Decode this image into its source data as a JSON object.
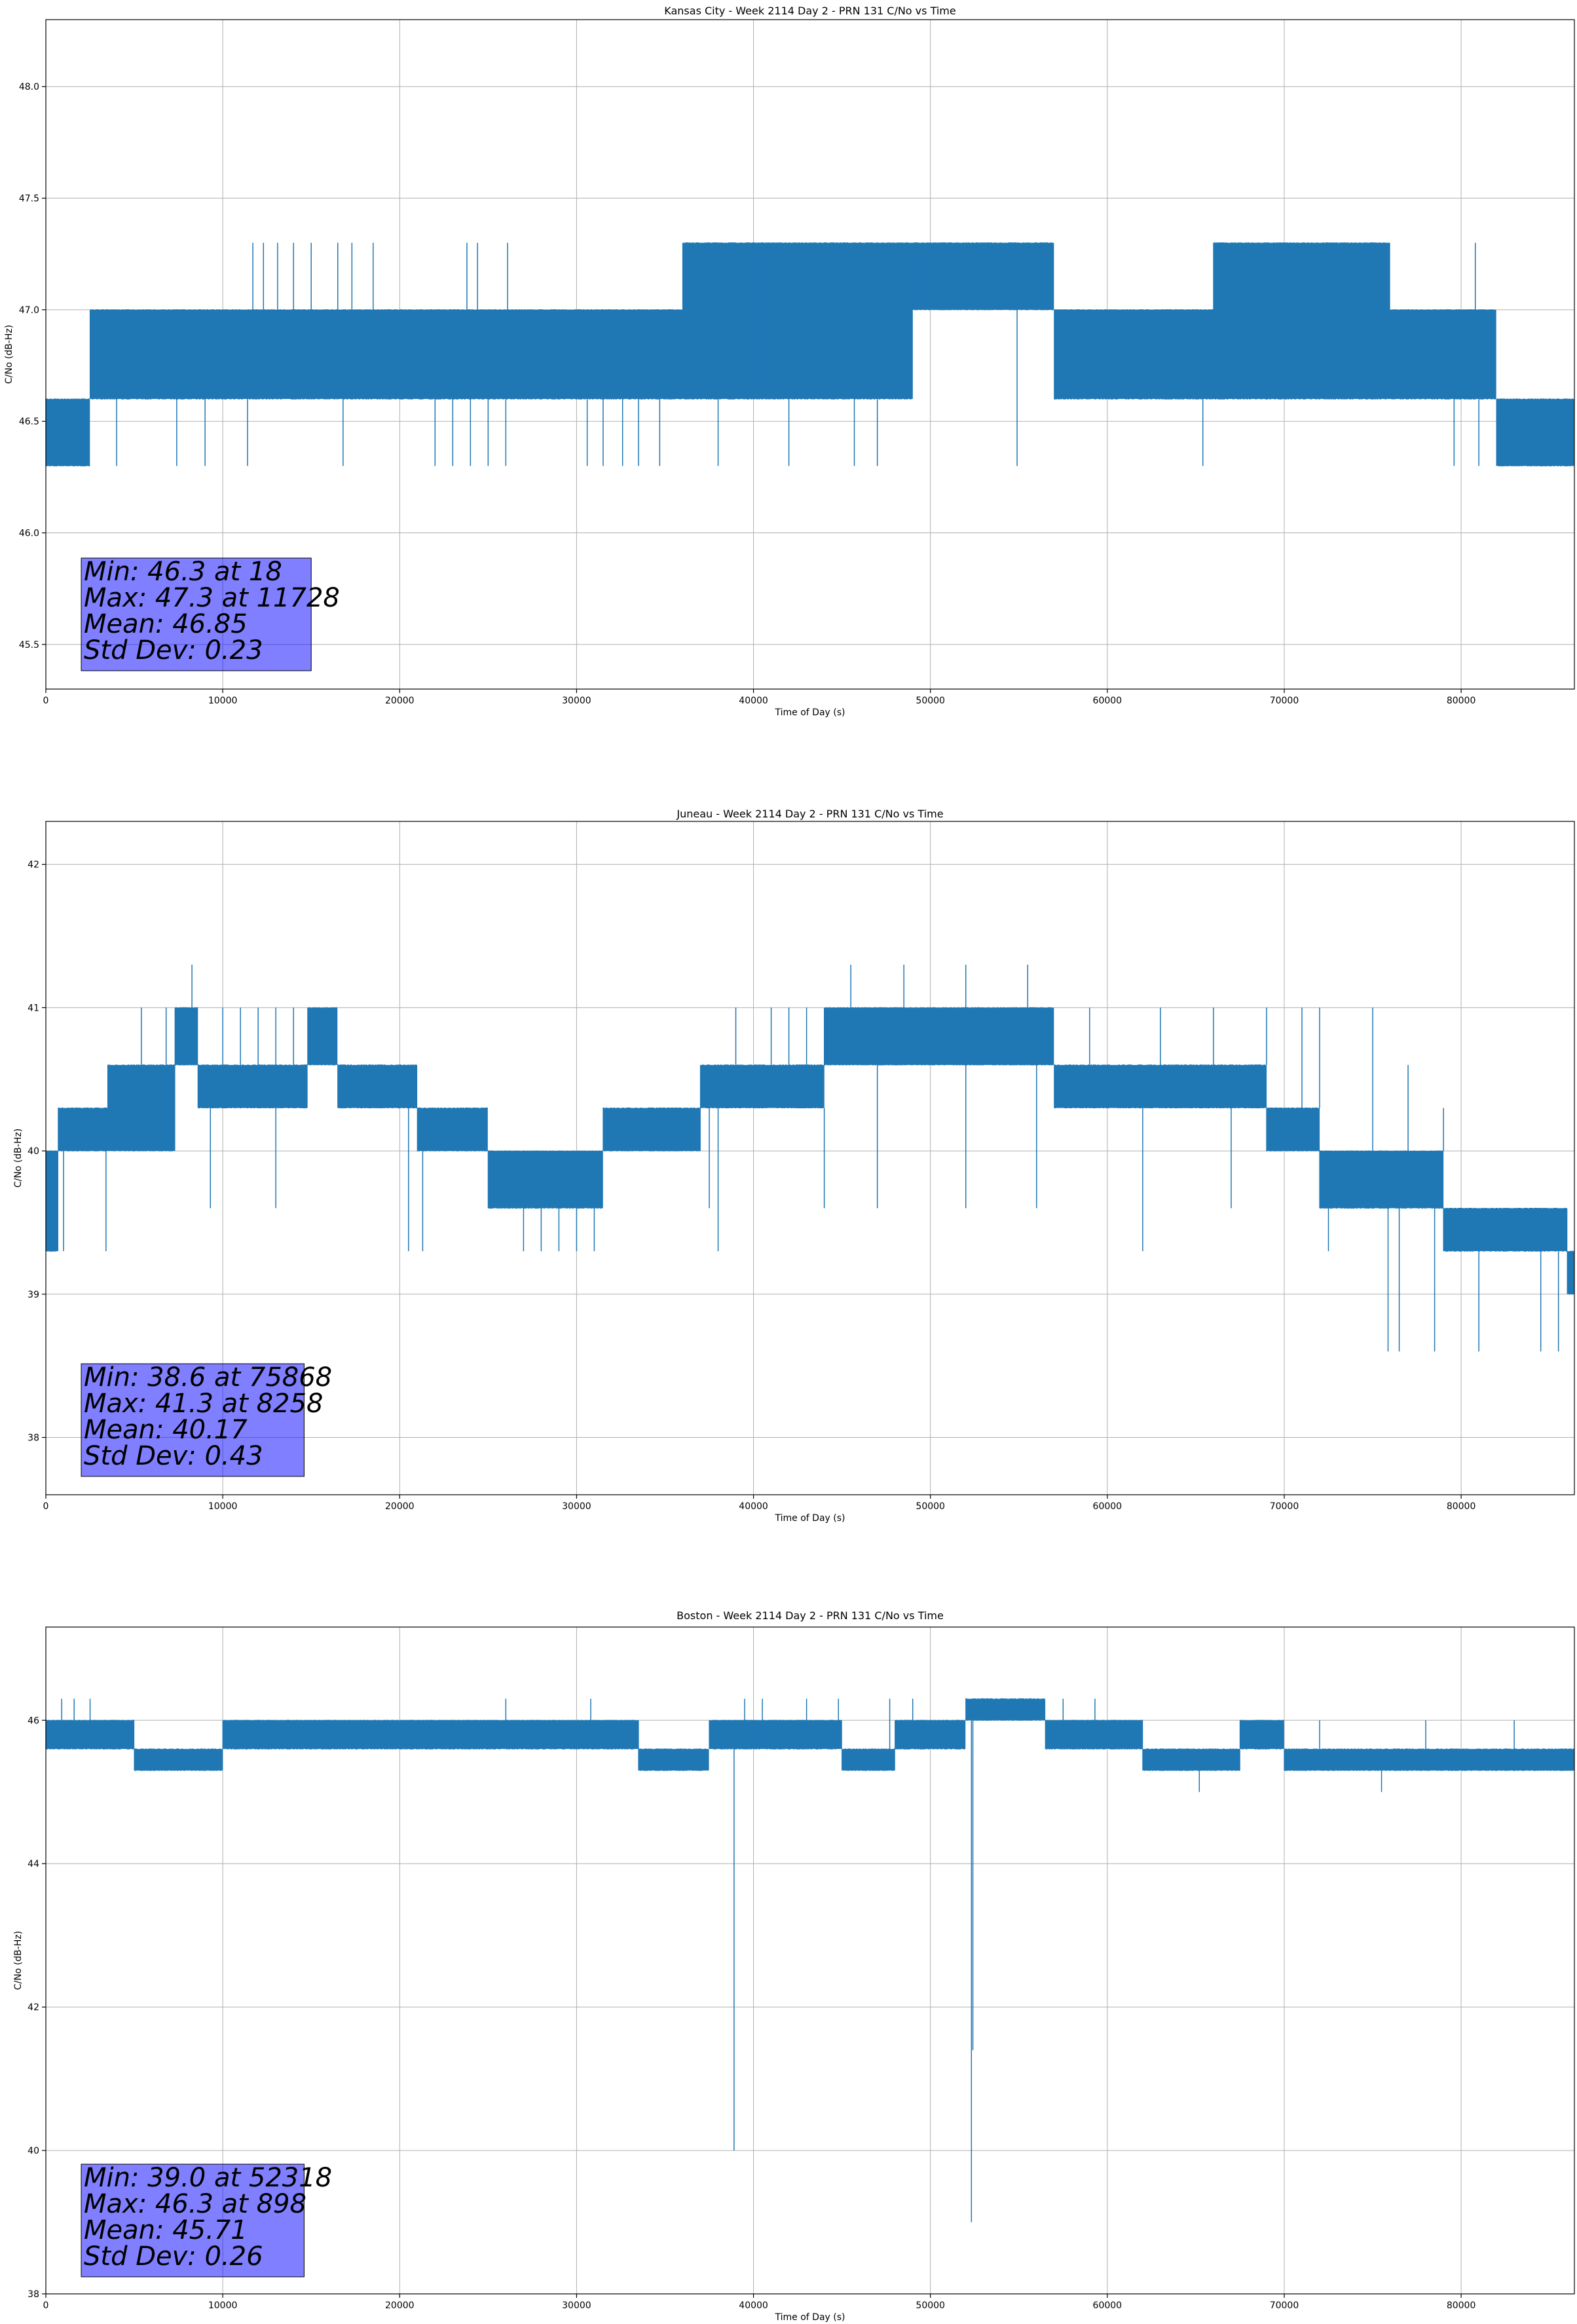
{
  "chart_data": [
    {
      "type": "line",
      "title": "Kansas City - Week 2114 Day 2 - PRN 131 C/No vs Time",
      "xlabel": "Time of Day (s)",
      "ylabel": "C/No (dB-Hz)",
      "xlim": [
        0,
        86400
      ],
      "ylim": [
        45.3,
        48.3
      ],
      "xticks": [
        0,
        10000,
        20000,
        30000,
        40000,
        50000,
        60000,
        70000,
        80000
      ],
      "yticks": [
        "45.5",
        "46.0",
        "46.5",
        "47.0",
        "47.5",
        "48.0"
      ],
      "grid": true,
      "line_color": "#1f77b4",
      "stats_box_color": "#0000ff",
      "stats": [
        "Min: 46.3 at 18",
        "Max: 47.3 at 11728",
        "Mean: 46.85",
        "Std Dev: 0.23"
      ],
      "series": [
        {
          "levels": [
            46.3,
            46.6,
            47.0,
            47.3
          ],
          "segments": [
            {
              "x": [
                0,
                2500
              ],
              "band": [
                46.3,
                46.6
              ]
            },
            {
              "x": [
                2500,
                36000
              ],
              "band": [
                46.6,
                47.0
              ]
            },
            {
              "x": [
                36000,
                40000
              ],
              "band": [
                46.6,
                47.3
              ]
            },
            {
              "x": [
                40000,
                49000
              ],
              "band": [
                46.6,
                47.3
              ]
            },
            {
              "x": [
                49000,
                57000
              ],
              "band": [
                47.0,
                47.3
              ]
            },
            {
              "x": [
                57000,
                66000
              ],
              "band": [
                46.6,
                47.0
              ]
            },
            {
              "x": [
                66000,
                76000
              ],
              "band": [
                46.6,
                47.3
              ]
            },
            {
              "x": [
                76000,
                82000
              ],
              "band": [
                46.6,
                47.0
              ]
            },
            {
              "x": [
                82000,
                86400
              ],
              "band": [
                46.3,
                46.6
              ]
            }
          ],
          "highs": [
            [
              11700,
              47.3
            ],
            [
              12300,
              47.3
            ],
            [
              13100,
              47.3
            ],
            [
              14000,
              47.3
            ],
            [
              15000,
              47.3
            ],
            [
              16500,
              47.3
            ],
            [
              17300,
              47.3
            ],
            [
              18500,
              47.3
            ],
            [
              23800,
              47.3
            ],
            [
              24400,
              47.3
            ],
            [
              26100,
              47.3
            ],
            [
              80800,
              47.3
            ]
          ],
          "lows": [
            [
              4000,
              46.3
            ],
            [
              7400,
              46.3
            ],
            [
              9000,
              46.3
            ],
            [
              11400,
              46.3
            ],
            [
              16800,
              46.3
            ],
            [
              22000,
              46.3
            ],
            [
              23000,
              46.3
            ],
            [
              24000,
              46.3
            ],
            [
              25000,
              46.3
            ],
            [
              26000,
              46.3
            ],
            [
              30600,
              46.3
            ],
            [
              31500,
              46.3
            ],
            [
              32600,
              46.3
            ],
            [
              33500,
              46.3
            ],
            [
              34700,
              46.3
            ],
            [
              38000,
              46.3
            ],
            [
              42000,
              46.3
            ],
            [
              45700,
              46.3
            ],
            [
              47000,
              46.3
            ],
            [
              54900,
              46.3
            ],
            [
              65400,
              46.3
            ],
            [
              79600,
              46.3
            ],
            [
              81000,
              46.3
            ]
          ]
        }
      ]
    },
    {
      "type": "line",
      "title": "Juneau - Week 2114 Day 2 - PRN 131 C/No vs Time",
      "xlabel": "Time of Day (s)",
      "ylabel": "C/No (dB-Hz)",
      "xlim": [
        0,
        86400
      ],
      "ylim": [
        37.6,
        42.3
      ],
      "xticks": [
        0,
        10000,
        20000,
        30000,
        40000,
        50000,
        60000,
        70000,
        80000
      ],
      "yticks": [
        "38",
        "39",
        "40",
        "41",
        "42"
      ],
      "grid": true,
      "line_color": "#1f77b4",
      "stats_box_color": "#0000ff",
      "stats": [
        "Min: 38.6 at 75868",
        "Max: 41.3 at 8258",
        "Mean: 40.17",
        "Std Dev: 0.43"
      ],
      "series": [
        {
          "levels": [
            38.6,
            39.0,
            39.3,
            39.6,
            40.0,
            40.3,
            40.6,
            41.0,
            41.3
          ],
          "segments": [
            {
              "x": [
                0,
                700
              ],
              "band": [
                39.3,
                40.0
              ]
            },
            {
              "x": [
                700,
                3500
              ],
              "band": [
                40.0,
                40.3
              ]
            },
            {
              "x": [
                3500,
                7300
              ],
              "band": [
                40.0,
                40.6
              ]
            },
            {
              "x": [
                7300,
                8600
              ],
              "band": [
                40.6,
                41.0
              ]
            },
            {
              "x": [
                8600,
                14800
              ],
              "band": [
                40.3,
                40.6
              ]
            },
            {
              "x": [
                14800,
                16500
              ],
              "band": [
                40.6,
                41.0
              ]
            },
            {
              "x": [
                16500,
                21000
              ],
              "band": [
                40.3,
                40.6
              ]
            },
            {
              "x": [
                21000,
                25000
              ],
              "band": [
                40.0,
                40.3
              ]
            },
            {
              "x": [
                25000,
                31500
              ],
              "band": [
                39.6,
                40.0
              ]
            },
            {
              "x": [
                31500,
                37000
              ],
              "band": [
                40.0,
                40.3
              ]
            },
            {
              "x": [
                37000,
                44000
              ],
              "band": [
                40.3,
                40.6
              ]
            },
            {
              "x": [
                44000,
                51000
              ],
              "band": [
                40.6,
                41.0
              ]
            },
            {
              "x": [
                51000,
                57000
              ],
              "band": [
                40.6,
                41.0
              ]
            },
            {
              "x": [
                57000,
                60000
              ],
              "band": [
                40.3,
                40.6
              ]
            },
            {
              "x": [
                60000,
                69000
              ],
              "band": [
                40.3,
                40.6
              ]
            },
            {
              "x": [
                69000,
                72000
              ],
              "band": [
                40.0,
                40.3
              ]
            },
            {
              "x": [
                72000,
                76000
              ],
              "band": [
                39.6,
                40.0
              ]
            },
            {
              "x": [
                76000,
                79000
              ],
              "band": [
                39.6,
                40.0
              ]
            },
            {
              "x": [
                79000,
                86000
              ],
              "band": [
                39.3,
                39.6
              ]
            },
            {
              "x": [
                86000,
                86400
              ],
              "band": [
                39.0,
                39.3
              ]
            }
          ],
          "highs": [
            [
              5400,
              41.0
            ],
            [
              6800,
              41.0
            ],
            [
              8258,
              41.3
            ],
            [
              10000,
              41.0
            ],
            [
              11000,
              41.0
            ],
            [
              12000,
              41.0
            ],
            [
              13000,
              41.0
            ],
            [
              14000,
              41.0
            ],
            [
              39000,
              41.0
            ],
            [
              41000,
              41.0
            ],
            [
              42000,
              41.0
            ],
            [
              43000,
              41.0
            ],
            [
              45500,
              41.3
            ],
            [
              48500,
              41.3
            ],
            [
              52000,
              41.3
            ],
            [
              55500,
              41.3
            ],
            [
              59000,
              41.0
            ],
            [
              63000,
              41.0
            ],
            [
              66000,
              41.0
            ],
            [
              69000,
              41.0
            ],
            [
              71000,
              41.0
            ],
            [
              72000,
              41.0
            ],
            [
              75000,
              41.0
            ],
            [
              77000,
              40.6
            ],
            [
              79000,
              40.3
            ]
          ],
          "lows": [
            [
              300,
              39.3
            ],
            [
              1000,
              39.3
            ],
            [
              3400,
              39.3
            ],
            [
              9300,
              39.6
            ],
            [
              13000,
              39.6
            ],
            [
              20500,
              39.3
            ],
            [
              21300,
              39.3
            ],
            [
              27000,
              39.3
            ],
            [
              28000,
              39.3
            ],
            [
              29000,
              39.3
            ],
            [
              30000,
              39.3
            ],
            [
              31000,
              39.3
            ],
            [
              37500,
              39.6
            ],
            [
              38000,
              39.3
            ],
            [
              44000,
              39.6
            ],
            [
              47000,
              39.6
            ],
            [
              52000,
              39.6
            ],
            [
              56000,
              39.6
            ],
            [
              62000,
              39.3
            ],
            [
              67000,
              39.6
            ],
            [
              72500,
              39.3
            ],
            [
              75868,
              38.6
            ],
            [
              76500,
              38.6
            ],
            [
              78500,
              38.6
            ],
            [
              81000,
              38.6
            ],
            [
              84500,
              38.6
            ],
            [
              85500,
              38.6
            ]
          ]
        }
      ]
    },
    {
      "type": "line",
      "title": "Boston - Week 2114 Day 2 - PRN 131 C/No vs Time",
      "xlabel": "Time of Day (s)",
      "ylabel": "C/No (dB-Hz)",
      "xlim": [
        0,
        86400
      ],
      "ylim": [
        38.0,
        47.3
      ],
      "xticks": [
        0,
        10000,
        20000,
        30000,
        40000,
        50000,
        60000,
        70000,
        80000
      ],
      "yticks": [
        "38",
        "40",
        "42",
        "44",
        "46"
      ],
      "grid": true,
      "line_color": "#1f77b4",
      "stats_box_color": "#0000ff",
      "stats": [
        "Min: 39.0 at 52318",
        "Max: 46.3 at 898",
        "Mean: 45.71",
        "Std Dev: 0.26"
      ],
      "series": [
        {
          "levels": [
            39.0,
            40.0,
            45.3,
            45.6,
            46.0,
            46.3
          ],
          "segments": [
            {
              "x": [
                0,
                2000
              ],
              "band": [
                45.6,
                46.0
              ]
            },
            {
              "x": [
                2000,
                5000
              ],
              "band": [
                45.6,
                46.0
              ]
            },
            {
              "x": [
                5000,
                10000
              ],
              "band": [
                45.3,
                45.6
              ]
            },
            {
              "x": [
                10000,
                33500
              ],
              "band": [
                45.6,
                46.0
              ]
            },
            {
              "x": [
                33500,
                37500
              ],
              "band": [
                45.3,
                45.6
              ]
            },
            {
              "x": [
                37500,
                40000
              ],
              "band": [
                45.6,
                46.0
              ]
            },
            {
              "x": [
                40000,
                45000
              ],
              "band": [
                45.6,
                46.0
              ]
            },
            {
              "x": [
                45000,
                48000
              ],
              "band": [
                45.3,
                45.6
              ]
            },
            {
              "x": [
                48000,
                52000
              ],
              "band": [
                45.6,
                46.0
              ]
            },
            {
              "x": [
                52000,
                56500
              ],
              "band": [
                46.0,
                46.3
              ]
            },
            {
              "x": [
                56500,
                62000
              ],
              "band": [
                45.6,
                46.0
              ]
            },
            {
              "x": [
                62000,
                67500
              ],
              "band": [
                45.3,
                45.6
              ]
            },
            {
              "x": [
                67500,
                70000
              ],
              "band": [
                45.6,
                46.0
              ]
            },
            {
              "x": [
                70000,
                86400
              ],
              "band": [
                45.3,
                45.6
              ]
            }
          ],
          "highs": [
            [
              898,
              46.3
            ],
            [
              1600,
              46.3
            ],
            [
              2500,
              46.3
            ],
            [
              26000,
              46.3
            ],
            [
              30800,
              46.3
            ],
            [
              39500,
              46.3
            ],
            [
              40500,
              46.3
            ],
            [
              43000,
              46.3
            ],
            [
              44800,
              46.3
            ],
            [
              47700,
              46.3
            ],
            [
              49000,
              46.3
            ],
            [
              57500,
              46.3
            ],
            [
              59300,
              46.3
            ],
            [
              72000,
              46.0
            ],
            [
              78000,
              46.0
            ],
            [
              83000,
              46.0
            ]
          ],
          "lows": [
            [
              38900,
              40.0
            ],
            [
              52318,
              39.0
            ],
            [
              52400,
              41.4
            ],
            [
              65200,
              45.0
            ],
            [
              75500,
              45.0
            ]
          ]
        }
      ]
    }
  ]
}
